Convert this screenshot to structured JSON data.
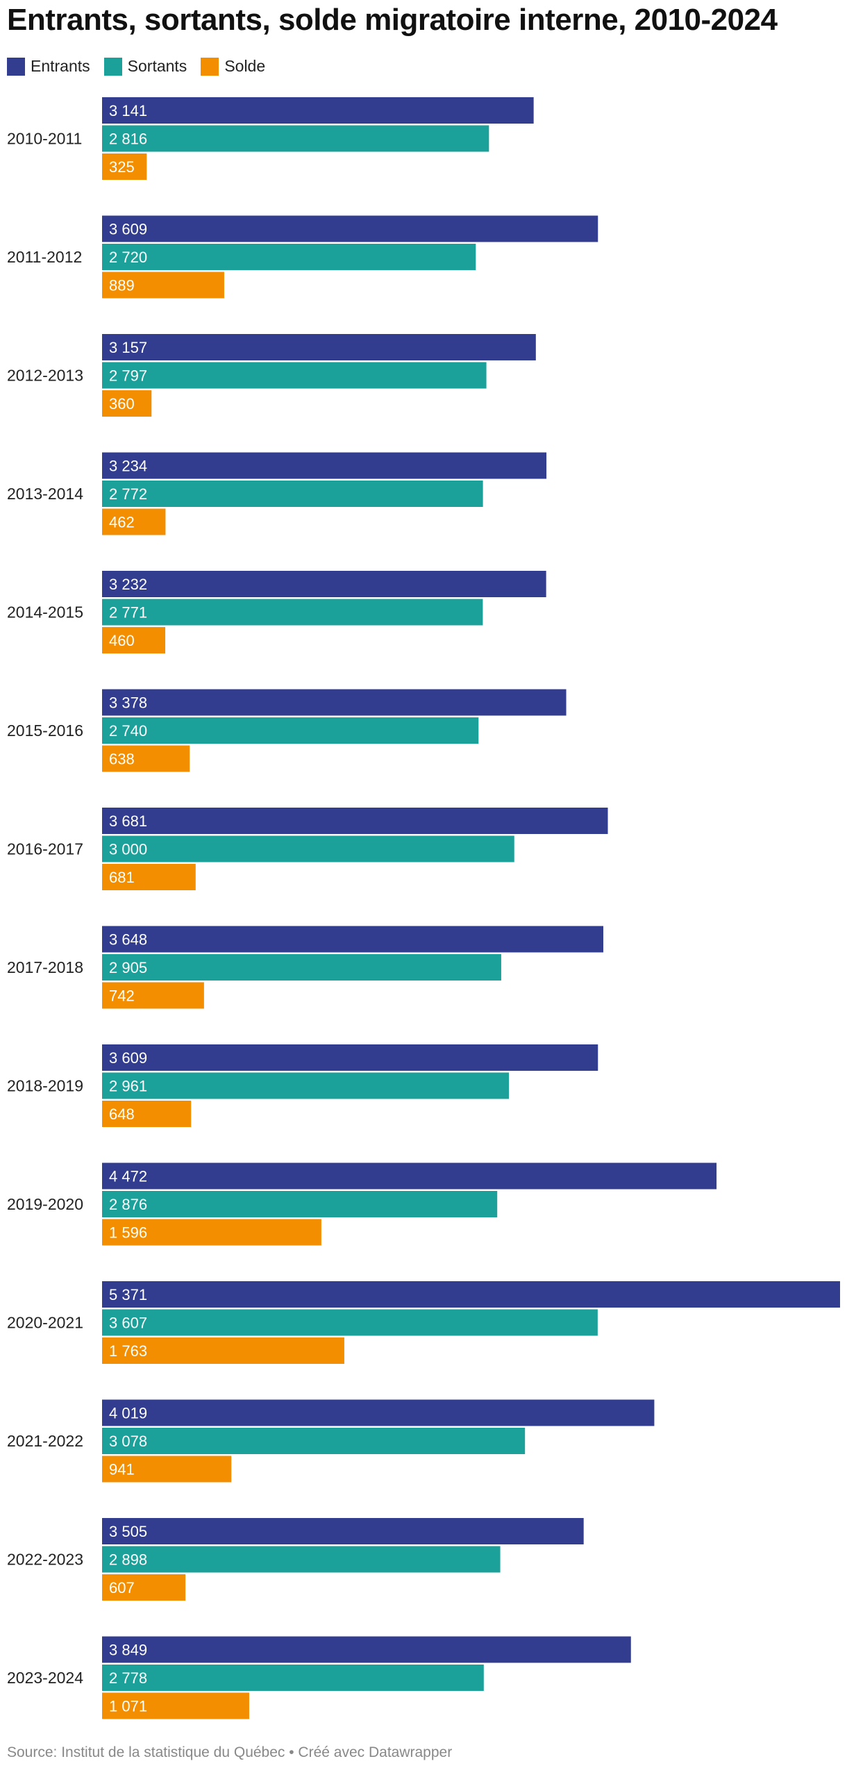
{
  "title": "Entrants, sortants, solde migratoire interne, 2010-2024",
  "source": "Source: Institut de la statistique du Québec • Créé avec Datawrapper",
  "colors": {
    "Entrants": "#323d8f",
    "Sortants": "#1ba19a",
    "Solde": "#f28e00"
  },
  "chart_data": {
    "type": "bar",
    "orientation": "horizontal",
    "grouped": true,
    "categories": [
      "2010-2011",
      "2011-2012",
      "2012-2013",
      "2013-2014",
      "2014-2015",
      "2015-2016",
      "2016-2017",
      "2017-2018",
      "2018-2019",
      "2019-2020",
      "2020-2021",
      "2021-2022",
      "2022-2023",
      "2023-2024"
    ],
    "series": [
      {
        "name": "Entrants",
        "values": [
          3141,
          3609,
          3157,
          3234,
          3232,
          3378,
          3681,
          3648,
          3609,
          4472,
          5371,
          4019,
          3505,
          3849
        ],
        "labels": [
          "3 141",
          "3 609",
          "3 157",
          "3 234",
          "3 232",
          "3 378",
          "3 681",
          "3 648",
          "3 609",
          "4 472",
          "5 371",
          "4 019",
          "3 505",
          "3 849"
        ]
      },
      {
        "name": "Sortants",
        "values": [
          2816,
          2720,
          2797,
          2772,
          2771,
          2740,
          3000,
          2905,
          2961,
          2876,
          3607,
          3078,
          2898,
          2778
        ],
        "labels": [
          "2 816",
          "2 720",
          "2 797",
          "2 772",
          "2 771",
          "2 740",
          "3 000",
          "2 905",
          "2 961",
          "2 876",
          "3 607",
          "3 078",
          "2 898",
          "2 778"
        ]
      },
      {
        "name": "Solde",
        "values": [
          325,
          889,
          360,
          462,
          460,
          638,
          681,
          742,
          648,
          1596,
          1763,
          941,
          607,
          1071
        ],
        "labels": [
          "325",
          "889",
          "360",
          "462",
          "460",
          "638",
          "681",
          "742",
          "648",
          "1 596",
          "1 763",
          "941",
          "607",
          "1 071"
        ]
      }
    ],
    "title": "Entrants, sortants, solde migratoire interne, 2010-2024",
    "legend": "top-left",
    "grid": false,
    "xlim": [
      0,
      5371
    ]
  }
}
